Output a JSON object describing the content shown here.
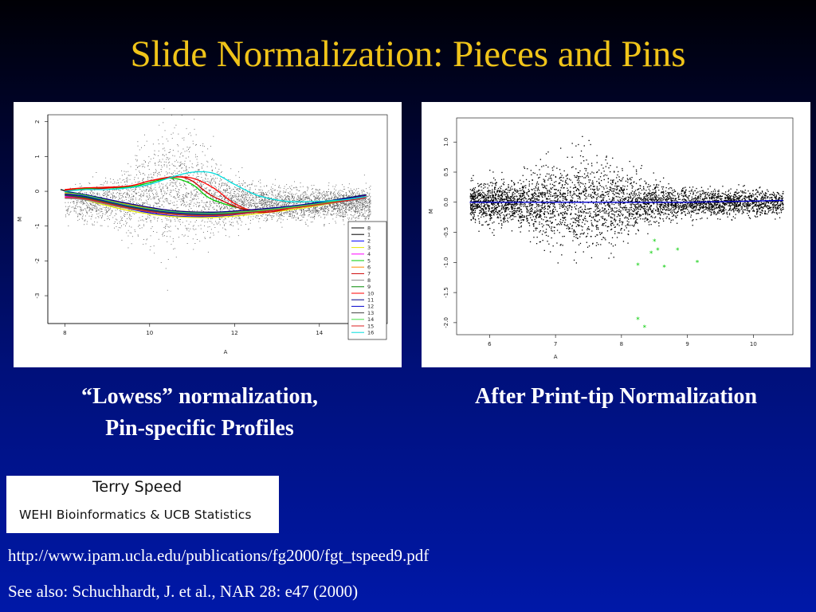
{
  "slide": {
    "title": "Slide Normalization:  Pieces and Pins",
    "left_caption_line1": "“Lowess” normalization,",
    "left_caption_line2": "Pin-specific Profiles",
    "right_caption": "After Print-tip Normalization",
    "speed_name": "Terry Speed",
    "speed_affiliation": "WEHI Bioinformatics & UCB Statistics",
    "ref_url": "http://www.ipam.ucla.edu/publications/fg2000/fgt_tspeed9.pdf",
    "ref_see_also": "See also:  Schuchhardt, J. et al., NAR 28: e47 (2000)"
  },
  "chart_data": [
    {
      "type": "scatter",
      "xlabel": "A",
      "ylabel": "M",
      "xlim": [
        7.6,
        15.6
      ],
      "ylim": [
        -3.8,
        2.2
      ],
      "xticks": [
        8,
        10,
        12,
        14
      ],
      "yticks": [
        -3,
        -2,
        -1,
        0,
        1,
        2
      ],
      "legend_position": "bottom-right",
      "series": [
        {
          "name": "8",
          "color": "#000000",
          "x": [
            7.9,
            8.5,
            9.5,
            10.5,
            11.5,
            12.5,
            13.5,
            14.5,
            15.1
          ],
          "y": [
            0.05,
            -0.15,
            -0.4,
            -0.6,
            -0.68,
            -0.6,
            -0.45,
            -0.25,
            -0.15
          ]
        },
        {
          "name": "1",
          "color": "#000000",
          "x": [
            8.0,
            8.5,
            9.5,
            10.5,
            11.5,
            12.5,
            13.5,
            14.5,
            15.1
          ],
          "y": [
            -0.1,
            -0.2,
            -0.45,
            -0.62,
            -0.65,
            -0.58,
            -0.45,
            -0.3,
            -0.2
          ]
        },
        {
          "name": "2",
          "color": "#0000ff",
          "x": [
            8.0,
            8.5,
            9.5,
            10.5,
            11.5,
            12.5,
            13.5,
            14.5,
            15.1
          ],
          "y": [
            0.0,
            -0.15,
            -0.5,
            -0.7,
            -0.72,
            -0.6,
            -0.45,
            -0.25,
            -0.12
          ]
        },
        {
          "name": "3",
          "color": "#e8e800",
          "x": [
            8.0,
            8.5,
            9.5,
            10.5,
            11.5,
            12.5,
            13.5,
            14.5,
            15.1
          ],
          "y": [
            -0.05,
            -0.25,
            -0.55,
            -0.72,
            -0.75,
            -0.65,
            -0.5,
            -0.3,
            -0.18
          ]
        },
        {
          "name": "4",
          "color": "#ff00ff",
          "x": [
            8.0,
            8.5,
            9.5,
            10.5,
            11.5,
            12.5,
            13.5,
            14.5,
            15.1
          ],
          "y": [
            -0.15,
            -0.2,
            -0.42,
            -0.58,
            -0.62,
            -0.55,
            -0.42,
            -0.28,
            -0.18
          ]
        },
        {
          "name": "5",
          "color": "#00cc00",
          "x": [
            8.0,
            8.5,
            9.5,
            10.0,
            10.5,
            11.0,
            11.5,
            12.5,
            13.5,
            14.5,
            15.1
          ],
          "y": [
            0.05,
            0.08,
            0.12,
            0.25,
            0.38,
            0.2,
            -0.25,
            -0.55,
            -0.42,
            -0.22,
            -0.1
          ]
        },
        {
          "name": "6",
          "color": "#ff8800",
          "x": [
            8.0,
            8.5,
            9.5,
            10.5,
            11.5,
            12.5,
            13.5,
            14.5,
            15.1
          ],
          "y": [
            -0.05,
            -0.12,
            -0.38,
            -0.55,
            -0.6,
            -0.55,
            -0.42,
            -0.25,
            -0.15
          ]
        },
        {
          "name": "7",
          "color": "#cc0000",
          "x": [
            8.0,
            8.5,
            9.5,
            10.0,
            10.6,
            11.0,
            11.5,
            12.5,
            13.5,
            14.5,
            15.1
          ],
          "y": [
            0.02,
            0.05,
            0.15,
            0.3,
            0.42,
            0.3,
            -0.15,
            -0.6,
            -0.45,
            -0.25,
            -0.12
          ]
        },
        {
          "name": "8",
          "color": "#888888",
          "x": [
            8.0,
            8.5,
            9.5,
            10.5,
            11.5,
            12.5,
            13.5,
            14.5,
            15.1
          ],
          "y": [
            -0.2,
            -0.25,
            -0.5,
            -0.65,
            -0.68,
            -0.6,
            -0.46,
            -0.3,
            -0.2
          ]
        },
        {
          "name": "9",
          "color": "#008800",
          "x": [
            8.0,
            8.5,
            9.5,
            10.5,
            11.5,
            12.5,
            13.5,
            14.5,
            15.1
          ],
          "y": [
            -0.1,
            -0.18,
            -0.45,
            -0.62,
            -0.66,
            -0.58,
            -0.44,
            -0.27,
            -0.16
          ]
        },
        {
          "name": "10",
          "color": "#ff0000",
          "x": [
            8.0,
            8.5,
            9.5,
            10.0,
            10.5,
            11.0,
            11.5,
            12.0,
            12.5,
            13.5,
            14.5,
            15.1
          ],
          "y": [
            0.05,
            0.1,
            0.15,
            0.3,
            0.4,
            0.38,
            0.1,
            -0.35,
            -0.55,
            -0.45,
            -0.25,
            -0.12
          ]
        },
        {
          "name": "11",
          "color": "#000088",
          "x": [
            8.0,
            8.5,
            9.5,
            10.5,
            11.5,
            12.5,
            13.5,
            14.5,
            15.1
          ],
          "y": [
            0.0,
            -0.1,
            -0.35,
            -0.55,
            -0.6,
            -0.52,
            -0.4,
            -0.22,
            -0.1
          ]
        },
        {
          "name": "12",
          "color": "#0000cc",
          "x": [
            8.0,
            8.5,
            9.5,
            10.5,
            11.5,
            12.5,
            13.5,
            14.5,
            15.1
          ],
          "y": [
            -0.08,
            -0.15,
            -0.42,
            -0.6,
            -0.65,
            -0.56,
            -0.42,
            -0.25,
            -0.14
          ]
        },
        {
          "name": "13",
          "color": "#444444",
          "x": [
            8.0,
            8.5,
            9.5,
            10.5,
            11.5,
            12.5,
            13.5,
            14.5,
            15.1
          ],
          "y": [
            -0.12,
            -0.2,
            -0.46,
            -0.63,
            -0.67,
            -0.58,
            -0.45,
            -0.28,
            -0.17
          ]
        },
        {
          "name": "14",
          "color": "#44dd44",
          "x": [
            8.0,
            8.5,
            9.5,
            10.5,
            11.5,
            12.5,
            13.5,
            14.5,
            15.1
          ],
          "y": [
            -0.03,
            -0.12,
            -0.4,
            -0.58,
            -0.63,
            -0.56,
            -0.43,
            -0.26,
            -0.15
          ]
        },
        {
          "name": "15",
          "color": "#dd2222",
          "x": [
            8.0,
            8.5,
            9.5,
            10.5,
            11.5,
            12.5,
            13.5,
            14.5,
            15.1
          ],
          "y": [
            -0.18,
            -0.22,
            -0.48,
            -0.66,
            -0.7,
            -0.6,
            -0.46,
            -0.29,
            -0.18
          ]
        },
        {
          "name": "16",
          "color": "#00dddd",
          "x": [
            8.0,
            8.5,
            9.0,
            9.5,
            10.0,
            10.5,
            11.0,
            11.5,
            12.0,
            12.5,
            13.0,
            13.5,
            14.5,
            15.1
          ],
          "y": [
            0.0,
            0.05,
            0.05,
            0.1,
            0.2,
            0.4,
            0.55,
            0.52,
            0.2,
            -0.1,
            -0.25,
            -0.3,
            -0.25,
            -0.15
          ]
        }
      ]
    },
    {
      "type": "scatter",
      "xlabel": "A",
      "ylabel": "M",
      "xlim": [
        5.5,
        10.6
      ],
      "ylim": [
        -2.2,
        1.4
      ],
      "xticks": [
        6,
        7,
        8,
        9,
        10
      ],
      "yticks": [
        -2.0,
        -1.5,
        -1.0,
        -0.5,
        0.0,
        0.5,
        1.0
      ],
      "fit_line": {
        "color": "#0000cc",
        "x": [
          5.7,
          7.0,
          8.0,
          9.0,
          10.45
        ],
        "y": [
          0.0,
          0.0,
          0.0,
          0.0,
          0.03
        ]
      },
      "highlighted_points": {
        "color": "#00cc00",
        "x": [
          8.25,
          8.45,
          8.5,
          8.55,
          8.65,
          8.85,
          9.15,
          8.25,
          8.35
        ],
        "y": [
          -1.05,
          -0.85,
          -0.65,
          -0.8,
          -1.08,
          -0.8,
          -1.0,
          -1.95,
          -2.08
        ]
      }
    }
  ]
}
